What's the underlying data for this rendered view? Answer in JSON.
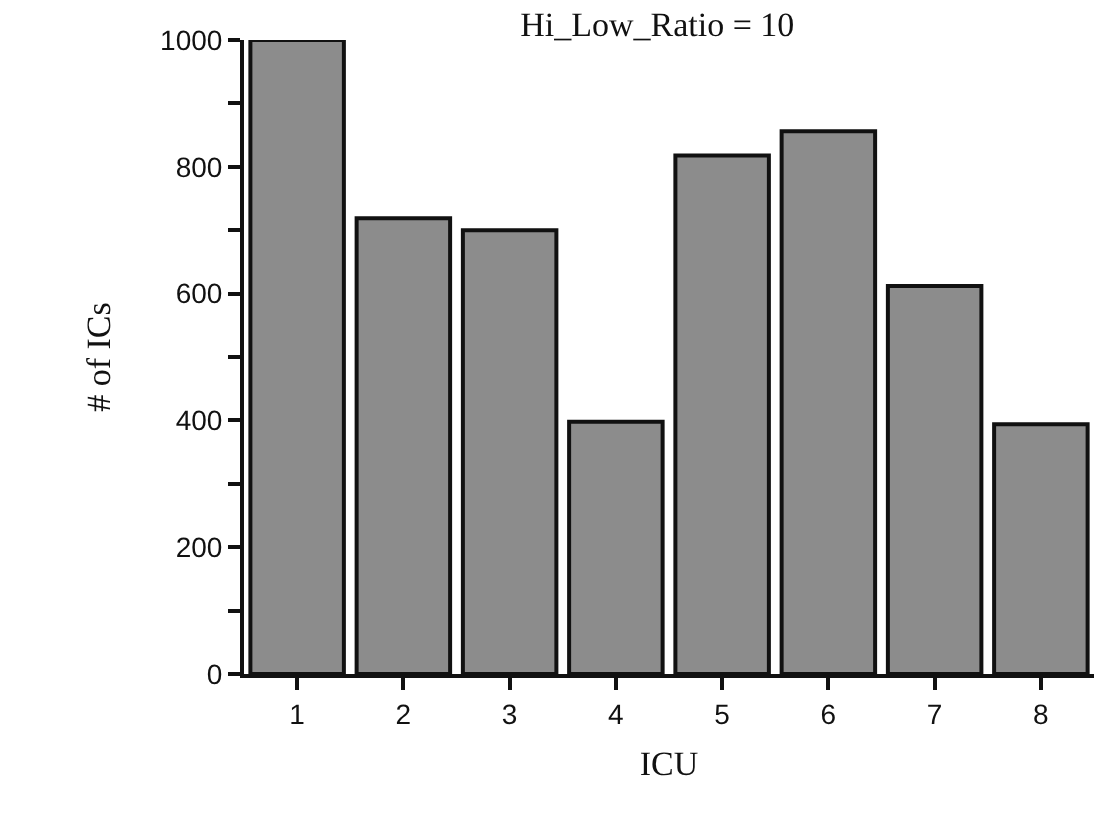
{
  "chart_data": {
    "type": "bar",
    "title": "Hi_Low_Ratio = 10",
    "xlabel": "ICU",
    "ylabel": "# of ICs",
    "categories": [
      "1",
      "2",
      "3",
      "4",
      "5",
      "6",
      "7",
      "8"
    ],
    "values": [
      1000,
      719,
      700,
      398,
      818,
      856,
      612,
      394
    ],
    "color": "#8c8c8c",
    "ylim": [
      0,
      1000
    ],
    "yticks": [
      0,
      {
        "value": 100,
        "label": null
      },
      200,
      {
        "value": 300,
        "label": null
      },
      400,
      {
        "value": 500,
        "label": null
      },
      600,
      {
        "value": 700,
        "label": null
      },
      800,
      {
        "value": 900,
        "label": null
      },
      1000
    ],
    "grid": false
  }
}
